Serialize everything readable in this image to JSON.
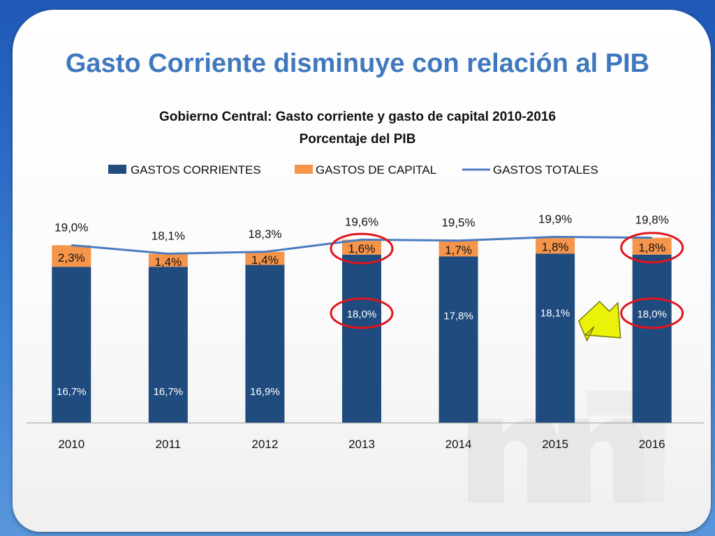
{
  "slide": {
    "title": "Gasto Corriente disminuye con relación al PIB"
  },
  "colors": {
    "corrientes": "#1f4b7e",
    "capital": "#f5954b",
    "totales": "#4a7cc0",
    "highlight": "#e2141b",
    "arrow": "#eaf20a"
  },
  "chart_data": {
    "type": "bar",
    "stacked": true,
    "title": "Gobierno Central: Gasto corriente y gasto de capital 2010-2016",
    "subtitle": "Porcentaje del PIB",
    "categories": [
      "2010",
      "2011",
      "2012",
      "2013",
      "2014",
      "2015",
      "2016"
    ],
    "series": [
      {
        "name": "GASTOS CORRIENTES",
        "kind": "bar",
        "values": [
          16.7,
          16.7,
          16.9,
          18.0,
          17.8,
          18.1,
          18.0
        ],
        "labels": [
          "16,7%",
          "16,7%",
          "16,9%",
          "18,0%",
          "17,8%",
          "18,1%",
          "18,0%"
        ]
      },
      {
        "name": "GASTOS DE CAPITAL",
        "kind": "bar",
        "values": [
          2.3,
          1.4,
          1.4,
          1.6,
          1.7,
          1.8,
          1.8
        ],
        "labels": [
          "2,3%",
          "1,4%",
          "1,4%",
          "1,6%",
          "1,7%",
          "1,8%",
          "1,8%"
        ]
      },
      {
        "name": "GASTOS TOTALES",
        "kind": "line",
        "values": [
          19.0,
          18.1,
          18.3,
          19.6,
          19.5,
          19.9,
          19.8
        ],
        "labels": [
          "19,0%",
          "18,1%",
          "18,3%",
          "19,6%",
          "19,5%",
          "19,9%",
          "19,8%"
        ]
      }
    ],
    "y_axis_visible": false,
    "grid": false,
    "legend_position": "top",
    "highlighted": [
      {
        "category": "2013",
        "series": "GASTOS DE CAPITAL"
      },
      {
        "category": "2013",
        "series": "GASTOS CORRIENTES"
      },
      {
        "category": "2016",
        "series": "GASTOS DE CAPITAL"
      },
      {
        "category": "2016",
        "series": "GASTOS CORRIENTES"
      }
    ],
    "arrow_points_to": "2016"
  }
}
